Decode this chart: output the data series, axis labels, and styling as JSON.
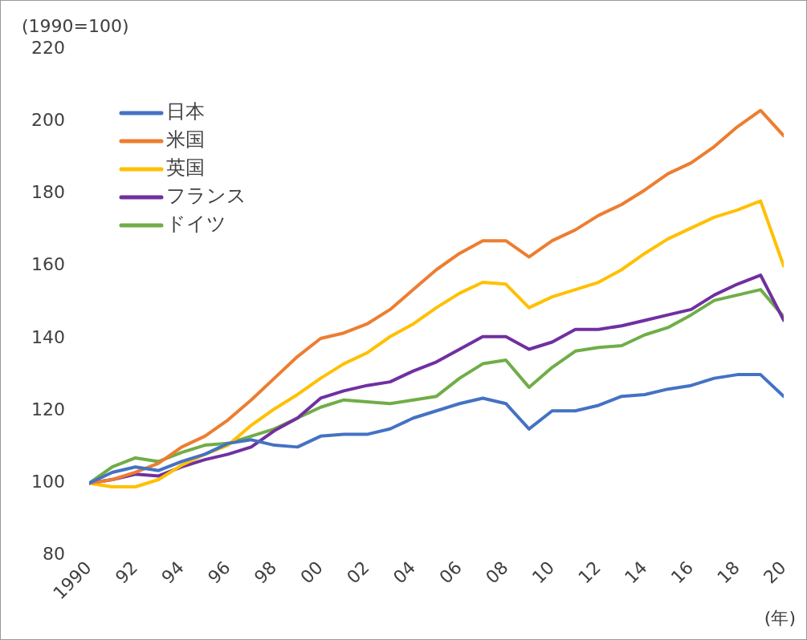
{
  "chart_data": {
    "type": "line",
    "ylabel": "(1990=100)",
    "xlabel": "(年)",
    "x": [
      1990,
      1991,
      1992,
      1993,
      1994,
      1995,
      1996,
      1997,
      1998,
      1999,
      2000,
      2001,
      2002,
      2003,
      2004,
      2005,
      2006,
      2007,
      2008,
      2009,
      2010,
      2011,
      2012,
      2013,
      2014,
      2015,
      2016,
      2017,
      2018,
      2019,
      2020
    ],
    "xlim": [
      1990,
      2020
    ],
    "xticks": [
      {
        "value": 1990,
        "label": "1990"
      },
      {
        "value": 1992,
        "label": "92"
      },
      {
        "value": 1994,
        "label": "94"
      },
      {
        "value": 1996,
        "label": "96"
      },
      {
        "value": 1998,
        "label": "98"
      },
      {
        "value": 2000,
        "label": "00"
      },
      {
        "value": 2002,
        "label": "02"
      },
      {
        "value": 2004,
        "label": "04"
      },
      {
        "value": 2006,
        "label": "06"
      },
      {
        "value": 2008,
        "label": "08"
      },
      {
        "value": 2010,
        "label": "10"
      },
      {
        "value": 2012,
        "label": "12"
      },
      {
        "value": 2014,
        "label": "14"
      },
      {
        "value": 2016,
        "label": "16"
      },
      {
        "value": 2018,
        "label": "18"
      },
      {
        "value": 2020,
        "label": "20"
      }
    ],
    "ylim": [
      80,
      220
    ],
    "yticks": [
      80,
      100,
      120,
      140,
      160,
      180,
      200,
      220
    ],
    "grid": false,
    "legend": "top left",
    "marker": "none",
    "line_style": "solid",
    "series": [
      {
        "name": "日本",
        "color": "#4472c4",
        "values": [
          100,
          103,
          104.5,
          103.5,
          106,
          108,
          111,
          112,
          110.5,
          110,
          113,
          113.5,
          113.5,
          115,
          118,
          120,
          122,
          123.5,
          122,
          115,
          120,
          120,
          121.5,
          124,
          124.5,
          126,
          127,
          129,
          130,
          130,
          124
        ]
      },
      {
        "name": "米国",
        "color": "#ed7d31",
        "values": [
          100,
          101,
          103,
          105.5,
          110,
          113,
          117.5,
          123,
          129,
          135,
          140,
          141.5,
          144,
          148,
          153.5,
          159,
          163.5,
          167,
          167,
          162.5,
          167,
          170,
          174,
          177,
          181,
          185.5,
          188.5,
          193,
          198.5,
          203,
          196
        ]
      },
      {
        "name": "英国",
        "color": "#ffc000",
        "values": [
          100,
          99,
          99,
          101,
          105,
          108,
          110.5,
          116,
          120.5,
          124.5,
          129,
          133,
          136,
          140.5,
          144,
          148.5,
          152.5,
          155.5,
          155,
          148.5,
          151.5,
          153.5,
          155.5,
          159,
          163.5,
          167.5,
          170.5,
          173.5,
          175.5,
          178,
          160
        ]
      },
      {
        "name": "フランス",
        "color": "#7030a0",
        "values": [
          100,
          101,
          102.5,
          102,
          104.5,
          106.5,
          108,
          110,
          114.5,
          118,
          123.5,
          125.5,
          127,
          128,
          131,
          133.5,
          137,
          140.5,
          140.5,
          137,
          139,
          142.5,
          142.5,
          143.5,
          145,
          146.5,
          148,
          152,
          155,
          157.5,
          145
        ]
      },
      {
        "name": "ドイツ",
        "color": "#70ad47",
        "values": [
          100,
          104.5,
          107,
          106,
          108.5,
          110.5,
          111,
          113,
          115,
          118,
          121,
          123,
          122.5,
          122,
          123,
          124,
          129,
          133,
          134,
          126.5,
          132,
          136.5,
          137.5,
          138,
          141,
          143,
          146.5,
          150.5,
          152,
          153.5,
          146
        ]
      }
    ]
  }
}
